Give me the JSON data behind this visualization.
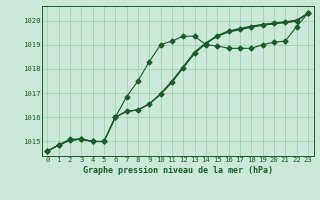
{
  "title": "Graphe pression niveau de la mer (hPa)",
  "x_labels": [
    "0",
    "1",
    "2",
    "3",
    "4",
    "5",
    "6",
    "7",
    "8",
    "9",
    "10",
    "11",
    "12",
    "13",
    "14",
    "15",
    "16",
    "17",
    "18",
    "19",
    "20",
    "21",
    "22",
    "23"
  ],
  "xlim": [
    -0.5,
    23.5
  ],
  "ylim": [
    1014.4,
    1020.6
  ],
  "yticks": [
    1015,
    1016,
    1017,
    1018,
    1019,
    1020
  ],
  "background_color": "#cce8d8",
  "grid_color": "#99ccaa",
  "line_color": "#1a5c2a",
  "line1": [
    1014.6,
    1014.85,
    1015.1,
    1015.1,
    1015.0,
    1015.0,
    1016.0,
    1016.85,
    1017.5,
    1018.3,
    1019.0,
    1019.15,
    1019.35,
    1019.35,
    1019.0,
    1018.95,
    1018.85,
    1018.85,
    1018.85,
    1019.0,
    1019.1,
    1019.15,
    1019.75,
    1020.3
  ],
  "line2": [
    1014.6,
    1014.85,
    1015.05,
    1015.1,
    1015.0,
    1015.0,
    1016.0,
    1016.25,
    1016.3,
    1016.55,
    1016.95,
    1017.45,
    1018.05,
    1018.65,
    1019.05,
    1019.35,
    1019.55,
    1019.65,
    1019.75,
    1019.82,
    1019.88,
    1019.93,
    1019.98,
    1020.3
  ],
  "line3": [
    1014.6,
    1014.85,
    1015.05,
    1015.1,
    1015.0,
    1015.0,
    1016.0,
    1016.25,
    1016.3,
    1016.55,
    1016.95,
    1017.45,
    1018.05,
    1018.65,
    1019.05,
    1019.35,
    1019.52,
    1019.62,
    1019.72,
    1019.8,
    1019.86,
    1019.91,
    1019.97,
    1020.3
  ],
  "line4": [
    1014.6,
    1014.85,
    1015.05,
    1015.1,
    1015.0,
    1015.0,
    1016.0,
    1016.25,
    1016.3,
    1016.55,
    1016.98,
    1017.5,
    1018.1,
    1018.7,
    1019.08,
    1019.38,
    1019.57,
    1019.67,
    1019.77,
    1019.84,
    1019.9,
    1019.95,
    1020.02,
    1020.3
  ],
  "marker": "D",
  "marker_size": 2.5,
  "line_width": 0.8,
  "title_fontsize": 6.0,
  "tick_fontsize": 5.2
}
